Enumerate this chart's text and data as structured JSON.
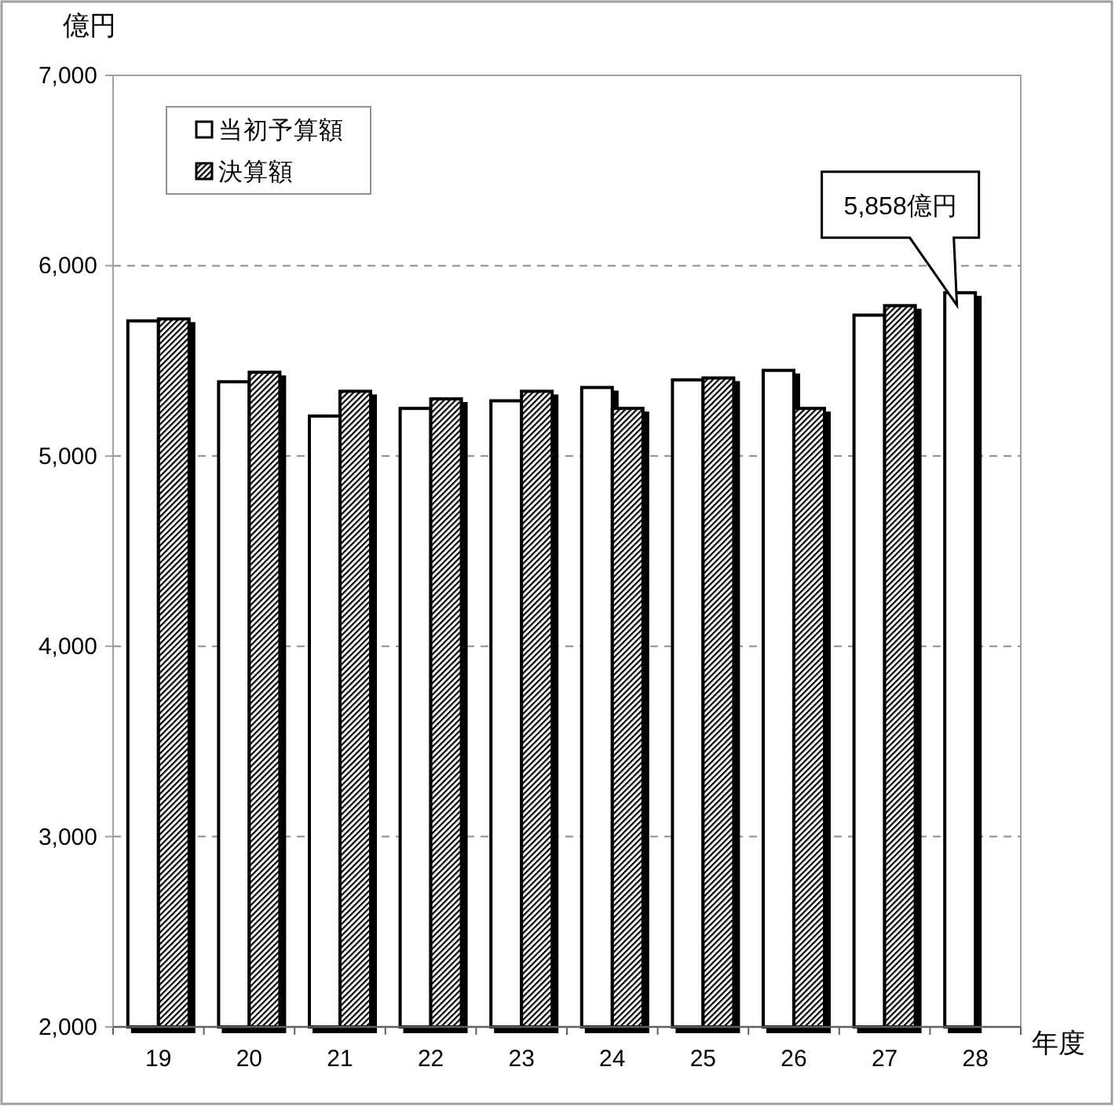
{
  "chart_data": {
    "type": "bar",
    "ylabel": "億円",
    "xlabel": "年度",
    "categories": [
      "19",
      "20",
      "21",
      "22",
      "23",
      "24",
      "25",
      "26",
      "27",
      "28"
    ],
    "series": [
      {
        "name": "当初予算額",
        "color": "#ffffff",
        "values": [
          5710,
          5390,
          5210,
          5250,
          5290,
          5360,
          5400,
          5450,
          5740,
          5858
        ]
      },
      {
        "name": "決算額",
        "color": "#000000",
        "values": [
          5720,
          5440,
          5340,
          5300,
          5340,
          5250,
          5410,
          5250,
          5790,
          null
        ]
      }
    ],
    "ylim": [
      2000,
      7000
    ],
    "yticks": [
      {
        "value": 2000,
        "label": "2,000"
      },
      {
        "value": 3000,
        "label": "3,000"
      },
      {
        "value": 4000,
        "label": "4,000"
      },
      {
        "value": 5000,
        "label": "5,000"
      },
      {
        "value": 6000,
        "label": "6,000"
      },
      {
        "value": 7000,
        "label": "7,000"
      }
    ],
    "grid": "y",
    "legend": "top left",
    "annotations": [
      {
        "text": "5,858億円",
        "x": "28",
        "y": 5858
      }
    ]
  }
}
